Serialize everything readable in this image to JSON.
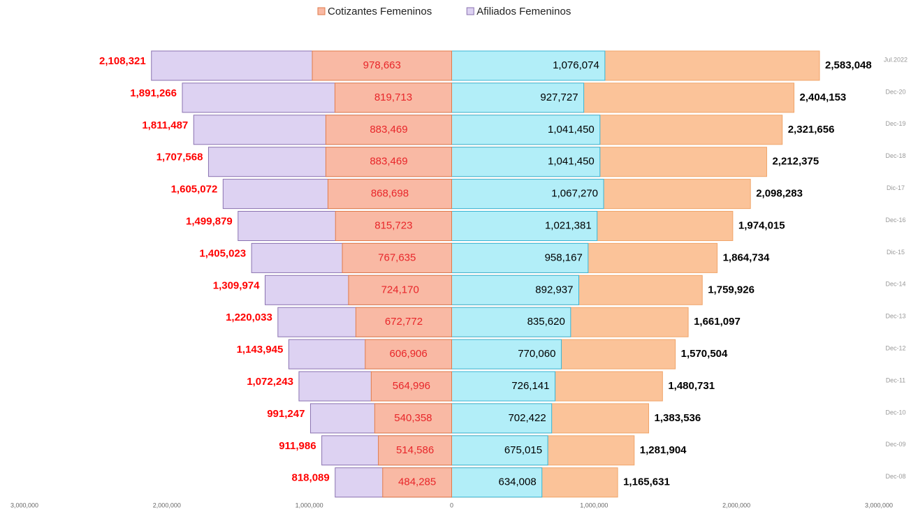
{
  "chart_data": {
    "type": "pyramid",
    "categories": [
      "Jul.2022",
      "Dec-20",
      "Dec-19",
      "Dec-18",
      "Dic-17",
      "Dec-16",
      "Dic-15",
      "Dec-14",
      "Dec-13",
      "Dec-12",
      "Dec-11",
      "Dec-10",
      "Dec-09",
      "Dec-08"
    ],
    "series": [
      {
        "name": "Cotizantes Femeninos",
        "color": "#f9b9a4",
        "stroke": "#e07b4a",
        "side": "left",
        "labels": "inside",
        "label_color": "#e8262a",
        "values": [
          978663,
          819713,
          883469,
          883469,
          868698,
          815723,
          767635,
          724170,
          672772,
          606906,
          564996,
          540358,
          514586,
          484285
        ],
        "value_labels": [
          "978,663",
          "819,713",
          "883,469",
          "883,469",
          "868,698",
          "815,723",
          "767,635",
          "724,170",
          "672,772",
          "606,906",
          "564,996",
          "540,358",
          "514,586",
          "484,285"
        ]
      },
      {
        "name": "Afiliados Femeninos",
        "color": "#ddd2f2",
        "stroke": "#8a72b0",
        "side": "left",
        "labels": "outside",
        "label_color": "#ff0000",
        "values": [
          2108321,
          1891266,
          1811487,
          1707568,
          1605072,
          1499879,
          1405023,
          1309974,
          1220033,
          1143945,
          1072243,
          991247,
          911986,
          818089
        ],
        "value_labels": [
          "2,108,321",
          "1,891,266",
          "1,811,487",
          "1,707,568",
          "1,605,072",
          "1,499,879",
          "1,405,023",
          "1,309,974",
          "1,220,033",
          "1,143,945",
          "1,072,243",
          "991,247",
          "911,986",
          "818,089"
        ]
      },
      {
        "color": "#b2eef8",
        "stroke": "#39b4d4",
        "side": "right",
        "labels": "inside",
        "label_color": "#000000",
        "values": [
          1076074,
          927727,
          1041450,
          1041450,
          1067270,
          1021381,
          958167,
          892937,
          835620,
          770060,
          726141,
          702422,
          675015,
          634008
        ],
        "value_labels": [
          "1,076,074",
          "927,727",
          "1,041,450",
          "1,041,450",
          "1,067,270",
          "1,021,381",
          "958,167",
          "892,937",
          "835,620",
          "770,060",
          "726,141",
          "702,422",
          "675,015",
          "634,008"
        ]
      },
      {
        "color": "#fbc399",
        "stroke": "#f0a56a",
        "side": "right",
        "labels": "outside",
        "label_color": "#000000",
        "values": [
          2583048,
          2404153,
          2321656,
          2212375,
          2098283,
          1974015,
          1864734,
          1759926,
          1661097,
          1570504,
          1480731,
          1383536,
          1281904,
          1165631
        ],
        "value_labels": [
          "2,583,048",
          "2,404,153",
          "2,321,656",
          "2,212,375",
          "2,098,283",
          "1,974,015",
          "1,864,734",
          "1,759,926",
          "1,661,097",
          "1,570,504",
          "1,480,731",
          "1,383,536",
          "1,281,904",
          "1,165,631"
        ]
      }
    ],
    "xlim": [
      -3000000,
      3000000
    ],
    "xticks": [
      {
        "value": -3000000,
        "label": "3,000,000"
      },
      {
        "value": -2000000,
        "label": "2,000,000"
      },
      {
        "value": -1000000,
        "label": "1,000,000"
      },
      0,
      {
        "value": 1000000,
        "label": "1,000,000"
      },
      {
        "value": 2000000,
        "label": "2,000,000"
      },
      {
        "value": 3000000,
        "label": "3,000,000"
      }
    ],
    "legend": "top"
  }
}
